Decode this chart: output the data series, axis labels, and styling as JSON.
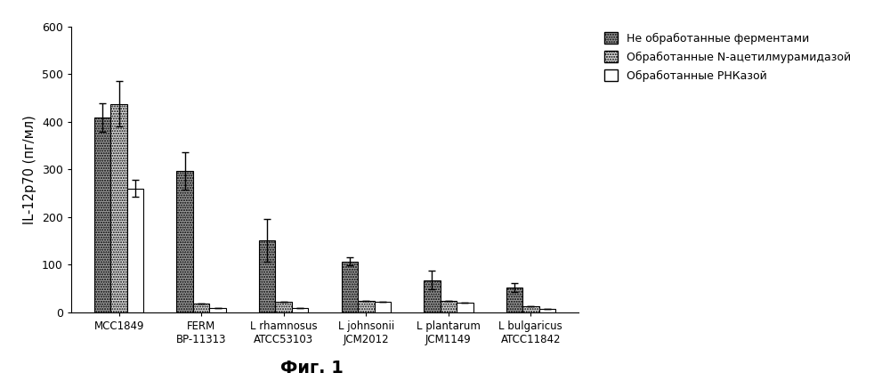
{
  "groups": [
    "MCC1849",
    "FERM\nBP-11313",
    "L rhamnosus\nATCC53103",
    "L johnsonii\nJCM2012",
    "L plantarum\nJCM1149",
    "L bulgaricus\nATCC11842"
  ],
  "bar1_values": [
    410,
    297,
    152,
    107,
    68,
    52
  ],
  "bar2_values": [
    438,
    18,
    22,
    25,
    25,
    13
  ],
  "bar3_values": [
    260,
    10,
    9,
    22,
    20,
    8
  ],
  "bar1_errors": [
    30,
    40,
    45,
    8,
    20,
    10
  ],
  "bar2_errors": [
    48,
    0,
    0,
    0,
    0,
    0
  ],
  "bar3_errors": [
    18,
    0,
    0,
    0,
    0,
    0
  ],
  "legend_labels": [
    "Не обработанные ферментами",
    "Обработанные N-ацетилмурамидазой",
    "Обработанные РНКазой"
  ],
  "ylabel": "IL-12p70 (пг/мл)",
  "ylim": [
    0,
    600
  ],
  "yticks": [
    0,
    100,
    200,
    300,
    400,
    500,
    600
  ],
  "figcaption": "Фиг. 1",
  "bar_width": 0.2,
  "background_color": "#ffffff"
}
